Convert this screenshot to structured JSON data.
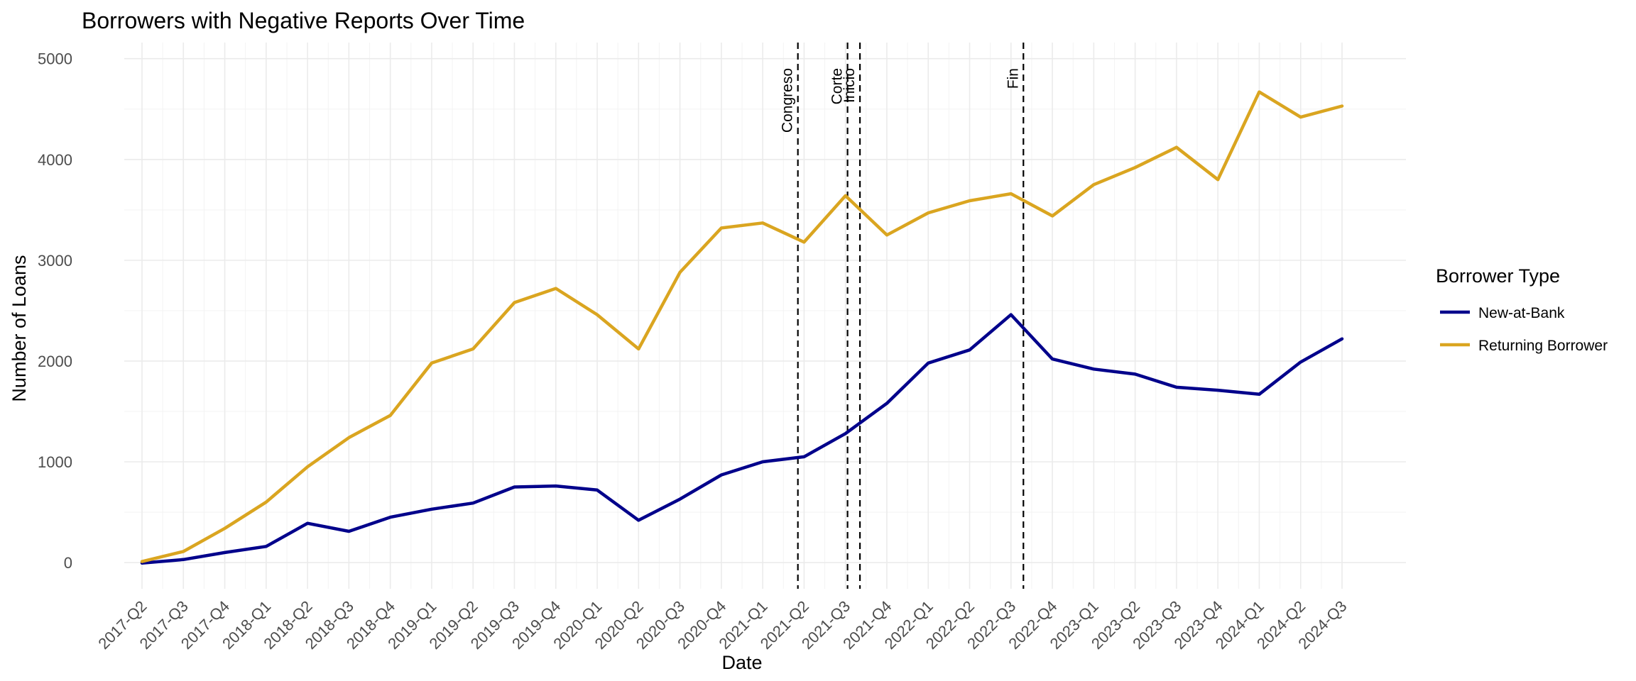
{
  "chart_data": {
    "type": "line",
    "title": "Borrowers with Negative Reports Over Time",
    "xlabel": "Date",
    "ylabel": "Number of Loans",
    "ylim": [
      -260,
      5160
    ],
    "yticks": [
      0,
      1000,
      2000,
      3000,
      4000,
      5000
    ],
    "grid": true,
    "legend": {
      "title": "Borrower Type",
      "position": "right"
    },
    "categories": [
      "2017-Q2",
      "2017-Q3",
      "2017-Q4",
      "2018-Q1",
      "2018-Q2",
      "2018-Q3",
      "2018-Q4",
      "2019-Q1",
      "2019-Q2",
      "2019-Q3",
      "2019-Q4",
      "2020-Q1",
      "2020-Q2",
      "2020-Q3",
      "2020-Q4",
      "2021-Q1",
      "2021-Q2",
      "2021-Q3",
      "2021-Q4",
      "2022-Q1",
      "2022-Q2",
      "2022-Q3",
      "2022-Q4",
      "2023-Q1",
      "2023-Q2",
      "2023-Q3",
      "2023-Q4",
      "2024-Q1",
      "2024-Q2",
      "2024-Q3"
    ],
    "series": [
      {
        "name": "New-at-Bank",
        "color": "#00008b",
        "values": [
          -5,
          30,
          100,
          160,
          390,
          310,
          450,
          530,
          590,
          750,
          760,
          720,
          420,
          630,
          870,
          1000,
          1050,
          1280,
          1580,
          1980,
          2110,
          2460,
          2020,
          1920,
          1870,
          1740,
          1710,
          1670,
          1990,
          2220
        ]
      },
      {
        "name": "Returning Borrower",
        "color": "#daa520",
        "values": [
          10,
          110,
          340,
          600,
          950,
          1240,
          1460,
          1980,
          2120,
          2580,
          2720,
          2460,
          2120,
          2880,
          3320,
          3370,
          3180,
          3640,
          3250,
          3470,
          3590,
          3660,
          3440,
          3750,
          3920,
          4120,
          3800,
          4670,
          4420,
          4530
        ]
      }
    ],
    "annotations": [
      {
        "label": "Congreso",
        "x": 15.85
      },
      {
        "label": "Corte",
        "x": 17.05
      },
      {
        "label": "Inicio",
        "x": 17.35
      },
      {
        "label": "Fin",
        "x": 21.3
      }
    ]
  }
}
